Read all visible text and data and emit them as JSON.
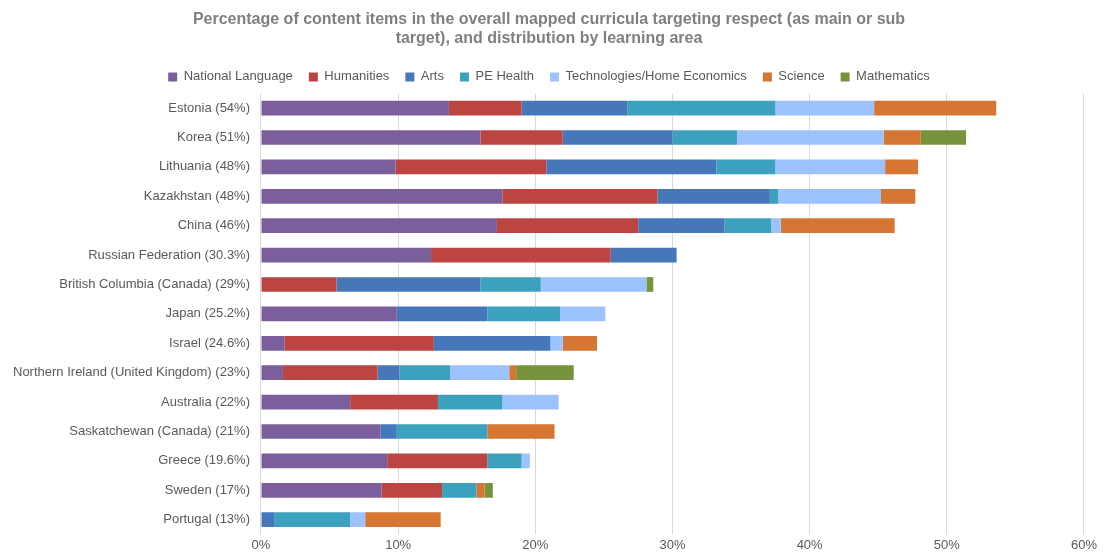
{
  "chart_data": {
    "type": "bar",
    "orientation": "horizontal",
    "stacked": true,
    "title": "Percentage of content items in the overall mapped curricula targeting respect (as main or sub target), and distribution by learning area",
    "categories": [
      "Estonia (54%)",
      "Korea (51%)",
      "Lithuania (48%)",
      "Kazakhstan (48%)",
      "China (46%)",
      "Russian Federation (30.3%)",
      "British Columbia (Canada) (29%)",
      "Japan (25.2%)",
      "Israel (24.6%)",
      "Northern Ireland (United Kingdom) (23%)",
      "Australia (22%)",
      "Saskatchewan (Canada) (21%)",
      "Greece (19.6%)",
      "Sweden (17%)",
      "Portugal (13%)"
    ],
    "series": [
      {
        "name": "National Language",
        "color": "#7b5f9c",
        "values": [
          13.7,
          16.0,
          9.8,
          17.6,
          17.2,
          12.4,
          null,
          9.9,
          1.7,
          1.6,
          6.5,
          8.7,
          9.2,
          8.8,
          null
        ]
      },
      {
        "name": "Humanities",
        "color": "#bc4541",
        "values": [
          5.3,
          6.0,
          11.0,
          11.3,
          10.3,
          13.1,
          5.5,
          null,
          10.9,
          6.9,
          6.4,
          null,
          7.3,
          4.4,
          null
        ]
      },
      {
        "name": "Arts",
        "color": "#4677b8",
        "values": [
          7.7,
          8.0,
          12.4,
          8.2,
          6.3,
          4.8,
          10.5,
          6.6,
          8.5,
          1.6,
          null,
          1.2,
          null,
          null,
          1.0
        ]
      },
      {
        "name": "PE Health",
        "color": "#3ca1bd",
        "values": [
          10.8,
          4.7,
          4.3,
          0.6,
          3.4,
          null,
          4.4,
          5.3,
          null,
          3.7,
          4.7,
          6.6,
          2.5,
          2.5,
          5.5
        ]
      },
      {
        "name": "Technologies/Home Economics",
        "color": "#9dc3fe",
        "values": [
          7.2,
          10.7,
          8.0,
          7.5,
          0.7,
          null,
          7.7,
          3.3,
          0.9,
          4.3,
          4.1,
          null,
          0.6,
          null,
          1.1
        ]
      },
      {
        "name": "Science",
        "color": "#d57632",
        "values": [
          8.9,
          2.7,
          2.4,
          2.5,
          8.3,
          null,
          null,
          null,
          2.5,
          0.5,
          null,
          4.9,
          null,
          0.6,
          5.5
        ]
      },
      {
        "name": "Mathematics",
        "color": "#77933c",
        "values": [
          null,
          3.3,
          null,
          null,
          null,
          null,
          0.5,
          null,
          null,
          4.2,
          null,
          null,
          null,
          0.6,
          null
        ]
      }
    ],
    "xlim": [
      0,
      60
    ],
    "xticks": [
      {
        "value": 0,
        "label": "0%"
      },
      {
        "value": 10,
        "label": "10%"
      },
      {
        "value": 20,
        "label": "20%"
      },
      {
        "value": 30,
        "label": "30%"
      },
      {
        "value": 40,
        "label": "40%"
      },
      {
        "value": 50,
        "label": "50%"
      },
      {
        "value": 60,
        "label": "60%"
      }
    ],
    "grid": "x",
    "legend": "top"
  }
}
